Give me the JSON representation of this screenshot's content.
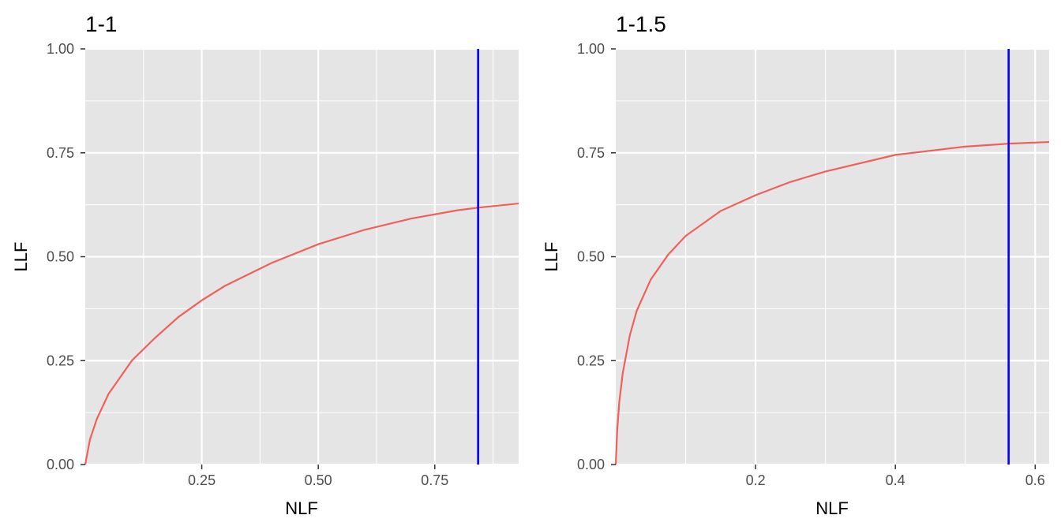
{
  "chart_data": [
    {
      "type": "line",
      "title": "1-1",
      "xlabel": "NLF",
      "ylabel": "LLF",
      "xlim": [
        0,
        0.93
      ],
      "ylim": [
        0,
        1
      ],
      "x_ticks": [
        0.25,
        0.5,
        0.75
      ],
      "x_tick_labels": [
        "0.25",
        "0.50",
        "0.75"
      ],
      "y_ticks": [
        0,
        0.25,
        0.5,
        0.75,
        1
      ],
      "y_tick_labels": [
        "0.00",
        "0.25",
        "0.50",
        "0.75",
        "1.00"
      ],
      "grid": true,
      "series": [
        {
          "color": "#f0605a",
          "x": [
            0,
            0.01,
            0.025,
            0.05,
            0.1,
            0.15,
            0.2,
            0.25,
            0.3,
            0.4,
            0.5,
            0.6,
            0.7,
            0.8,
            0.843,
            0.93
          ],
          "y": [
            0,
            0.06,
            0.11,
            0.17,
            0.25,
            0.305,
            0.355,
            0.395,
            0.43,
            0.485,
            0.53,
            0.565,
            0.592,
            0.612,
            0.618,
            0.628
          ]
        }
      ],
      "vline": {
        "x": 0.843,
        "color": "#0000ff"
      }
    },
    {
      "type": "line",
      "title": "1-1.5",
      "xlabel": "NLF",
      "ylabel": "LLF",
      "xlim": [
        0,
        0.62
      ],
      "ylim": [
        0,
        1
      ],
      "x_ticks": [
        0.2,
        0.4,
        0.6
      ],
      "x_tick_labels": [
        "0.2",
        "0.4",
        "0.6"
      ],
      "y_ticks": [
        0,
        0.25,
        0.5,
        0.75,
        1
      ],
      "y_tick_labels": [
        "0.00",
        "0.25",
        "0.50",
        "0.75",
        "1.00"
      ],
      "grid": true,
      "series": [
        {
          "color": "#f0605a",
          "x": [
            0,
            0.002,
            0.005,
            0.01,
            0.02,
            0.03,
            0.05,
            0.075,
            0.1,
            0.15,
            0.2,
            0.25,
            0.3,
            0.4,
            0.5,
            0.562,
            0.62
          ],
          "y": [
            0,
            0.08,
            0.15,
            0.22,
            0.31,
            0.37,
            0.445,
            0.505,
            0.55,
            0.61,
            0.648,
            0.68,
            0.705,
            0.745,
            0.765,
            0.772,
            0.776
          ]
        }
      ],
      "vline": {
        "x": 0.562,
        "color": "#0000ff"
      }
    }
  ]
}
